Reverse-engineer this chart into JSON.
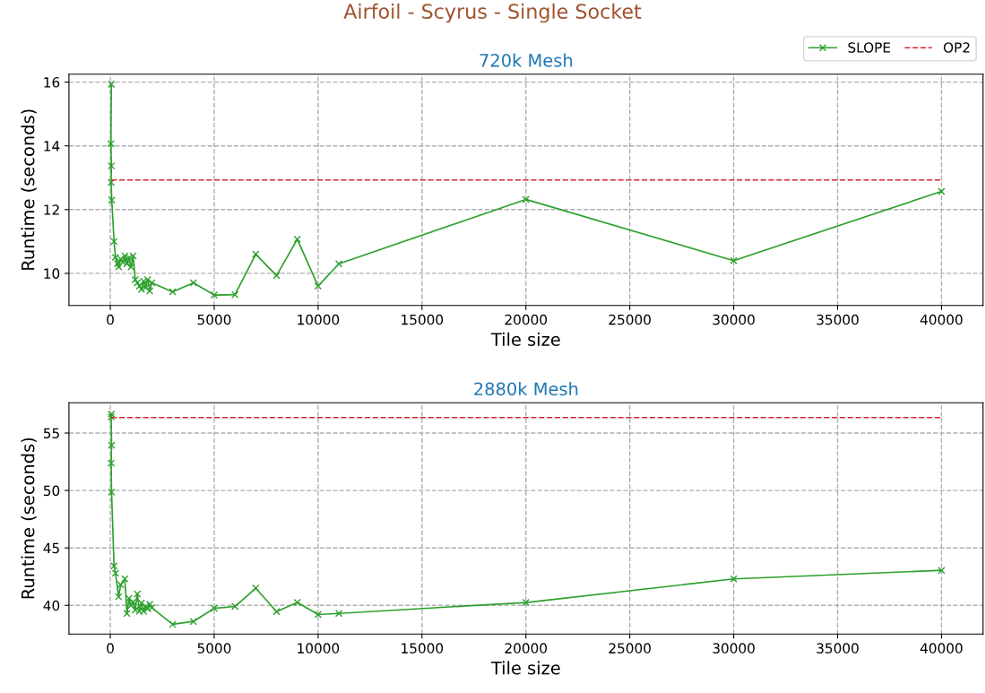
{
  "chart_data": [
    {
      "type": "line",
      "title": "Airfoil - Scyrus - Single Socket",
      "subtitle": "720k Mesh",
      "xlabel": "Tile size",
      "ylabel": "Runtime (seconds)",
      "xlim": [
        -1990,
        42000
      ],
      "xticks": [
        0,
        5000,
        10000,
        15000,
        20000,
        25000,
        30000,
        35000,
        40000
      ],
      "ylim": [
        8.99,
        16.25
      ],
      "yticks": [
        10,
        12,
        14,
        16
      ],
      "grid": true,
      "legend": "top right",
      "series": [
        {
          "name": "SLOPE",
          "color": "#2ca02c",
          "marker": "cross",
          "line_style": "solid",
          "x": [
            50,
            30,
            50,
            40,
            70,
            180,
            250,
            350,
            400,
            500,
            600,
            700,
            800,
            900,
            1000,
            1100,
            1200,
            1300,
            1400,
            1500,
            1600,
            1700,
            1800,
            1900,
            2000,
            3000,
            4000,
            5000,
            6000,
            7000,
            8000,
            9000,
            10000,
            11000,
            20000,
            30000,
            40000
          ],
          "values": [
            15.93,
            14.07,
            13.37,
            12.85,
            12.3,
            11.0,
            10.5,
            10.3,
            10.2,
            10.45,
            10.35,
            10.55,
            10.3,
            10.5,
            10.2,
            10.55,
            9.8,
            9.7,
            9.6,
            9.5,
            9.75,
            9.55,
            9.8,
            9.45,
            9.7,
            9.42,
            9.7,
            9.32,
            9.33,
            10.6,
            9.93,
            11.07,
            9.6,
            10.3,
            12.32,
            10.4,
            12.57
          ]
        },
        {
          "name": "OP2",
          "color": "#d62728",
          "marker": "none",
          "line_style": "dashed",
          "x": [
            50,
            40000
          ],
          "values": [
            12.93,
            12.93
          ]
        }
      ]
    },
    {
      "type": "line",
      "subtitle": "2880k Mesh",
      "xlabel": "Tile size",
      "ylabel": "Runtime (seconds)",
      "xlim": [
        -1990,
        42000
      ],
      "xticks": [
        0,
        5000,
        10000,
        15000,
        20000,
        25000,
        30000,
        35000,
        40000
      ],
      "ylim": [
        37.5,
        57.64
      ],
      "yticks": [
        40,
        45,
        50,
        55
      ],
      "grid": true,
      "series": [
        {
          "color": "#2ca02c",
          "marker": "cross",
          "line_style": "solid",
          "x": [
            50,
            40,
            60,
            40,
            60,
            180,
            250,
            400,
            500,
            700,
            800,
            900,
            1000,
            1100,
            1200,
            1300,
            1400,
            1500,
            1600,
            1700,
            1800,
            1900,
            2000,
            3000,
            4000,
            5000,
            6000,
            7000,
            8000,
            9000,
            10000,
            11000,
            20000,
            30000,
            40000
          ],
          "values": [
            56.65,
            56.4,
            53.94,
            52.38,
            49.85,
            43.44,
            42.8,
            40.75,
            41.8,
            42.3,
            39.3,
            40.6,
            40.0,
            40.3,
            39.6,
            41.0,
            39.5,
            40.2,
            39.5,
            39.9,
            39.7,
            40.1,
            39.8,
            38.35,
            38.6,
            39.75,
            39.9,
            41.5,
            39.45,
            40.25,
            39.2,
            39.3,
            40.25,
            42.3,
            43.05
          ]
        },
        {
          "color": "#d62728",
          "marker": "none",
          "line_style": "dashed",
          "x": [
            50,
            40000
          ],
          "values": [
            56.35,
            56.35
          ]
        }
      ]
    }
  ]
}
